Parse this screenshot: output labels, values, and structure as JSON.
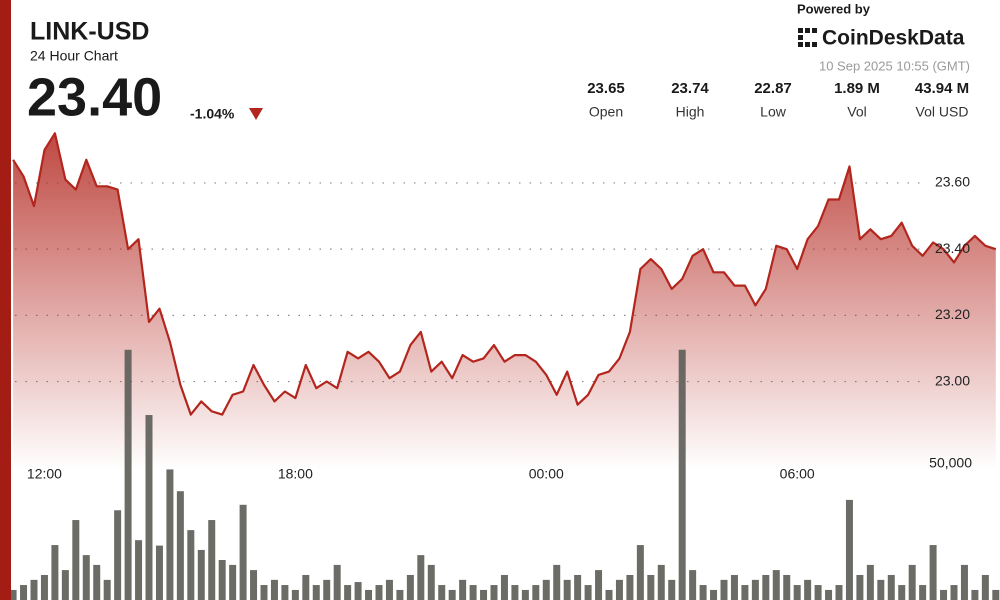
{
  "header": {
    "title": "LINK-USD",
    "subtitle": "24 Hour Chart",
    "price": "23.40",
    "change": "-1.04%",
    "powered_by": "Powered by",
    "brand": "CoinDeskData",
    "timestamp": "10 Sep 2025 10:55 (GMT)"
  },
  "stats": [
    {
      "value": "23.65",
      "label": "Open"
    },
    {
      "value": "23.74",
      "label": "High"
    },
    {
      "value": "22.87",
      "label": "Low"
    },
    {
      "value": "1.89 M",
      "label": "Vol"
    },
    {
      "value": "43.94 M",
      "label": "Vol USD"
    }
  ],
  "chart_data": {
    "type": "area",
    "grid": true,
    "x": [
      11.25,
      11.5,
      11.75,
      12,
      12.25,
      12.5,
      12.75,
      13,
      13.25,
      13.5,
      13.75,
      14,
      14.25,
      14.5,
      14.75,
      15,
      15.25,
      15.5,
      15.75,
      16,
      16.25,
      16.5,
      16.75,
      17,
      17.25,
      17.5,
      17.75,
      18,
      18.25,
      18.5,
      18.75,
      19,
      19.25,
      19.5,
      19.75,
      20,
      20.25,
      20.5,
      20.75,
      21,
      21.25,
      21.5,
      21.75,
      22,
      22.25,
      22.5,
      22.75,
      23,
      23.25,
      23.5,
      23.75,
      24,
      24.25,
      24.5,
      24.75,
      25,
      25.25,
      25.5,
      25.75,
      26,
      26.25,
      26.5,
      26.75,
      27,
      27.25,
      27.5,
      27.75,
      28,
      28.25,
      28.5,
      28.75,
      29,
      29.25,
      29.5,
      29.75,
      30,
      30.25,
      30.5,
      30.75,
      31,
      31.25,
      31.5,
      31.75,
      32,
      32.25,
      32.5,
      32.75,
      33,
      33.25,
      33.5,
      33.75,
      34,
      34.25,
      34.5,
      34.75
    ],
    "xlim": [
      11.2,
      34.85
    ],
    "xticks": [
      {
        "value": 12,
        "label": "12:00"
      },
      {
        "value": 18,
        "label": "18:00"
      },
      {
        "value": 24,
        "label": "00:00"
      },
      {
        "value": 30,
        "label": "06:00"
      }
    ],
    "ylim": [
      22.34,
      23.76
    ],
    "yticks": [
      {
        "value": 23,
        "label": "23.00"
      },
      {
        "value": 23.2,
        "label": "23.20"
      },
      {
        "value": 23.4,
        "label": "23.40"
      },
      {
        "value": 23.6,
        "label": "23.60"
      }
    ],
    "y2lim": [
      0,
      100000
    ],
    "y2ticks": [
      {
        "value": 50000,
        "label": "50,000"
      }
    ],
    "series": [
      {
        "color": "#b3261e",
        "values": [
          23.67,
          23.62,
          23.53,
          23.7,
          23.75,
          23.61,
          23.58,
          23.67,
          23.59,
          23.59,
          23.58,
          23.4,
          23.43,
          23.18,
          23.22,
          23.12,
          22.99,
          22.9,
          22.94,
          22.91,
          22.9,
          22.96,
          22.97,
          23.05,
          22.99,
          22.94,
          22.97,
          22.95,
          23.05,
          22.98,
          23.0,
          22.98,
          23.09,
          23.07,
          23.09,
          23.06,
          23.01,
          23.03,
          23.11,
          23.15,
          23.03,
          23.06,
          23.01,
          23.08,
          23.06,
          23.07,
          23.11,
          23.06,
          23.08,
          23.08,
          23.06,
          23.02,
          22.96,
          23.03,
          22.93,
          22.96,
          23.02,
          23.03,
          23.07,
          23.15,
          23.34,
          23.37,
          23.34,
          23.28,
          23.31,
          23.38,
          23.4,
          23.33,
          23.33,
          23.29,
          23.29,
          23.23,
          23.28,
          23.41,
          23.4,
          23.34,
          23.43,
          23.47,
          23.55,
          23.55,
          23.65,
          23.43,
          23.46,
          23.43,
          23.44,
          23.48,
          23.41,
          23.38,
          23.42,
          23.4,
          23.36,
          23.41,
          23.44,
          23.41,
          23.4
        ]
      },
      {
        "color": "#5c5c57",
        "axis": "y2",
        "type": "bar",
        "values": [
          3700,
          5500,
          7400,
          9200,
          20200,
          11000,
          29400,
          16500,
          12900,
          7400,
          33000,
          92000,
          22000,
          68000,
          20000,
          48000,
          40000,
          25700,
          18400,
          29400,
          14700,
          12900,
          35000,
          11000,
          5500,
          7400,
          5500,
          3700,
          9200,
          5500,
          7400,
          12900,
          5500,
          6600,
          3700,
          5500,
          7400,
          3700,
          9200,
          16500,
          12900,
          5500,
          3700,
          7400,
          5500,
          3700,
          5500,
          9200,
          5500,
          3700,
          5500,
          7400,
          12900,
          7400,
          9200,
          5500,
          11000,
          3700,
          7400,
          9200,
          20200,
          9200,
          12900,
          7400,
          92000,
          11000,
          5500,
          3700,
          7400,
          9200,
          5500,
          7400,
          9200,
          11000,
          9200,
          5500,
          7400,
          5500,
          3700,
          5500,
          36800,
          9200,
          12900,
          7400,
          9200,
          5500,
          12900,
          5500,
          20200,
          3700,
          5500,
          12900,
          3700,
          9200,
          3700
        ]
      }
    ]
  }
}
